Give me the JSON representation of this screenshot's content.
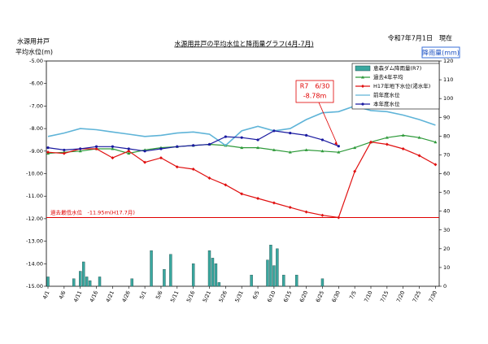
{
  "chart_data": {
    "type": "line",
    "title": "水源用井戸の平均水位と降雨量グラフ(4月-7月)",
    "y_label": [
      "水源用井戸",
      "平均水位(m)"
    ],
    "date_text": "令和7年7月1日　現在",
    "y2_label": "降雨量(mm)",
    "categories": [
      "4/1",
      "4/6",
      "4/11",
      "4/16",
      "4/21",
      "4/26",
      "5/1",
      "5/6",
      "5/11",
      "5/16",
      "5/21",
      "5/26",
      "5/31",
      "6/5",
      "6/10",
      "6/15",
      "6/20",
      "6/25",
      "6/30",
      "7/5",
      "7/10",
      "7/15",
      "7/20",
      "7/25",
      "7/30"
    ],
    "ylim": [
      -15,
      -5
    ],
    "yticks": [
      {
        "value": -5,
        "label": "-5.00"
      },
      {
        "value": -6,
        "label": "-6.00"
      },
      {
        "value": -7,
        "label": "-7.00"
      },
      {
        "value": -8,
        "label": "-8.00"
      },
      {
        "value": -9,
        "label": "-9.00"
      },
      {
        "value": -10,
        "label": "-10.00"
      },
      {
        "value": -11,
        "label": "-11.00"
      },
      {
        "value": -12,
        "label": "-12.00"
      },
      {
        "value": -13,
        "label": "-13.00"
      },
      {
        "value": -14,
        "label": "-14.00"
      },
      {
        "value": -15,
        "label": "-15.00"
      }
    ],
    "y2lim": [
      0,
      120
    ],
    "y2ticks": [
      0,
      10,
      20,
      30,
      40,
      50,
      60,
      70,
      80,
      90,
      100,
      110,
      120
    ],
    "rain": {
      "name": "恵森ダム降雨量(R7)",
      "type": "bar",
      "axis": "y2",
      "color": "#3aa8a0",
      "x": [
        "4/1",
        "4/9",
        "4/11",
        "4/12",
        "4/13",
        "4/14",
        "4/17",
        "4/27",
        "5/3",
        "5/7",
        "5/9",
        "5/16",
        "5/21",
        "5/22",
        "5/23",
        "5/24",
        "6/3",
        "6/8",
        "6/9",
        "6/10",
        "6/11",
        "6/13",
        "6/17",
        "6/25"
      ],
      "values": [
        5,
        4,
        8,
        13,
        5,
        3,
        5,
        4,
        19,
        9,
        17,
        12,
        19,
        15,
        12,
        2,
        6,
        14,
        22,
        11,
        20,
        6,
        6,
        4
      ]
    },
    "series": [
      {
        "name": "過去4年平均",
        "color": "#2e9a3a",
        "marker": "triangle",
        "values": [
          -9.1,
          -9.05,
          -9.0,
          -8.9,
          -8.9,
          -9.1,
          -8.95,
          -8.85,
          -8.8,
          -8.75,
          -8.7,
          -8.75,
          -8.85,
          -8.85,
          -8.95,
          -9.05,
          -8.95,
          -9.0,
          -9.05,
          -8.85,
          -8.6,
          -8.4,
          -8.3,
          -8.4,
          -8.6
        ]
      },
      {
        "name": "H17年地下水位(渇水年)",
        "color": "#e01010",
        "marker": "diamond",
        "values": [
          -9.05,
          -9.1,
          -8.9,
          -8.9,
          -9.3,
          -9.0,
          -9.5,
          -9.3,
          -9.7,
          -9.8,
          -10.2,
          -10.5,
          -10.9,
          -11.1,
          -11.3,
          -11.5,
          -11.7,
          -11.85,
          -11.95,
          -9.9,
          -8.6,
          -8.7,
          -8.9,
          -9.2,
          -9.6
        ]
      },
      {
        "name": "前年度水位",
        "color": "#5fb4d8",
        "marker": "none",
        "values": [
          -8.35,
          -8.2,
          -8.0,
          -8.05,
          -8.15,
          -8.25,
          -8.35,
          -8.3,
          -8.2,
          -8.15,
          -8.25,
          -8.75,
          -8.1,
          -7.9,
          -8.1,
          -8.0,
          -7.6,
          -7.3,
          -7.25,
          -7.0,
          -7.2,
          -7.25,
          -7.4,
          -7.6,
          -7.85
        ]
      },
      {
        "name": "本年度水位",
        "color": "#1a1aa0",
        "marker": "circle",
        "values": [
          -8.85,
          -8.95,
          -8.9,
          -8.8,
          -8.8,
          -8.9,
          -9.0,
          -8.9,
          -8.8,
          -8.75,
          -8.7,
          -8.36,
          -8.4,
          -8.5,
          -8.1,
          -8.2,
          -8.3,
          -8.5,
          -8.78,
          null,
          null,
          null,
          null,
          null,
          null
        ]
      }
    ],
    "reference_line": {
      "value": -11.95,
      "label": "過去最低水位　-11.95ｍ(H17.7月)",
      "color": "#e00000"
    },
    "callout": {
      "lines": [
        "R7　6/30",
        "-8.78m"
      ],
      "x": "6/30",
      "value": -8.78,
      "color": "#e00000"
    }
  }
}
